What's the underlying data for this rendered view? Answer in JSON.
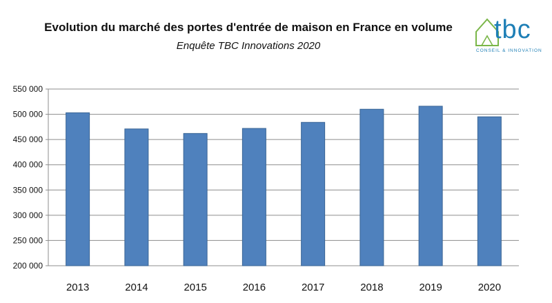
{
  "header": {
    "title": "Evolution du marché des portes d'entrée de maison en France en volume",
    "subtitle": "Enquête TBC Innovations 2020"
  },
  "logo": {
    "text": "tbc",
    "tagline": "CONSEIL & INNOVATION",
    "color": "#1e7fb6",
    "house_color": "#7ab648"
  },
  "chart_data": {
    "type": "bar",
    "title": "Evolution du marché des portes d'entrée de maison en France en volume",
    "subtitle": "Enquête TBC Innovations 2020",
    "categories": [
      "2013",
      "2014",
      "2015",
      "2016",
      "2017",
      "2018",
      "2019",
      "2020"
    ],
    "values": [
      503000,
      471000,
      462000,
      472000,
      484000,
      510000,
      516000,
      495000
    ],
    "ylim": [
      200000,
      550000
    ],
    "yticks": [
      200000,
      250000,
      300000,
      350000,
      400000,
      450000,
      500000,
      550000
    ],
    "ytick_labels": [
      "200 000",
      "250 000",
      "300 000",
      "350 000",
      "400 000",
      "450 000",
      "500 000",
      "550 000"
    ],
    "xlabel": "",
    "ylabel": "",
    "grid": true,
    "legend": "none",
    "bar_color": "#4f81bd",
    "bar_edge_color": "#3a6595",
    "grid_color": "#8c8c8c"
  }
}
